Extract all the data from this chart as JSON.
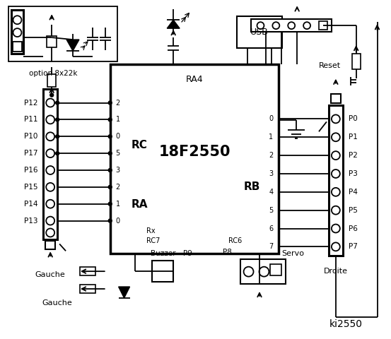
{
  "title": "ki2550",
  "bg_color": "#ffffff",
  "line_color": "#000000",
  "chip_label": "18F2550",
  "chip_sublabel": "RA4",
  "left_connector_labels": [
    "P12",
    "P11",
    "P10",
    "P17",
    "P16",
    "P15",
    "P14",
    "P13"
  ],
  "right_connector_labels": [
    "P0",
    "P1",
    "P2",
    "P3",
    "P4",
    "P5",
    "P6",
    "P7"
  ],
  "rc_labels": [
    "2",
    "1",
    "0",
    "5",
    "3",
    "2",
    "1",
    "0"
  ],
  "rb_labels": [
    "0",
    "1",
    "2",
    "3",
    "4",
    "5",
    "6",
    "7"
  ],
  "section_label_rc": "RC",
  "section_label_ra": "RA",
  "section_label_rb": "RB",
  "bottom_labels": [
    "Buzzer",
    "P9",
    "P8",
    "Servo"
  ],
  "gauche_label": "Gauche",
  "droite_label": "Droite",
  "option_label": "option 8x22k",
  "reset_label": "Reset",
  "usb_label": "USB",
  "rx_label": "Rx",
  "rc7_label": "RC7",
  "rc6_label": "RC6"
}
